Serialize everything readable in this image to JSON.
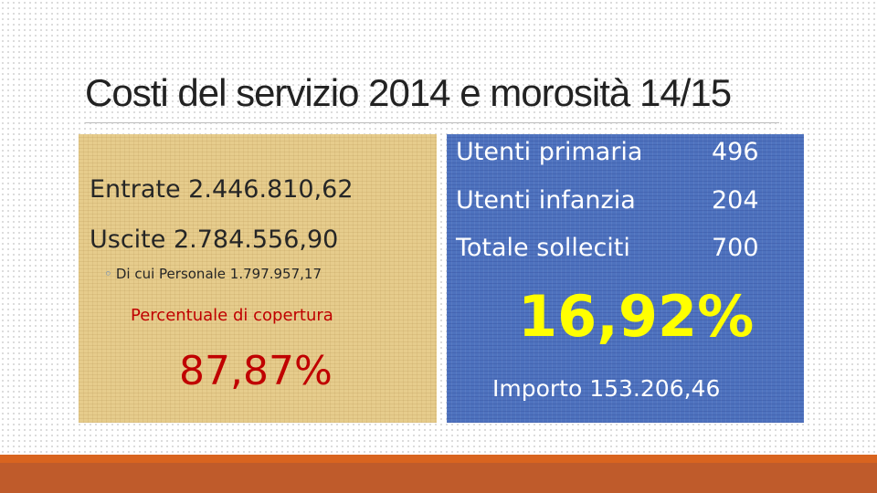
{
  "title": "Costi del servizio 2014 e morosità 14/15",
  "left": {
    "entrate": "Entrate  2.446.810,62",
    "uscite": "Uscite 2.784.556,90",
    "bullet_marker": "◦",
    "personale": "Di cui Personale 1.797.957,17",
    "coverage_label": "Percentuale di copertura",
    "coverage_value": "87,87%"
  },
  "right": {
    "rows": [
      {
        "label": "Utenti primaria",
        "value": "496"
      },
      {
        "label": "Utenti infanzia",
        "value": "204"
      },
      {
        "label": "Totale  solleciti",
        "value": "700"
      }
    ],
    "percent": "16,92%",
    "amount": "Importo  153.206,46"
  },
  "colors": {
    "left_panel": "#e6cc8c",
    "right_panel": "#4e72be",
    "accent_red": "#c00000",
    "accent_yellow": "#ffff00",
    "bottom_bar": "#bf5b2b"
  }
}
